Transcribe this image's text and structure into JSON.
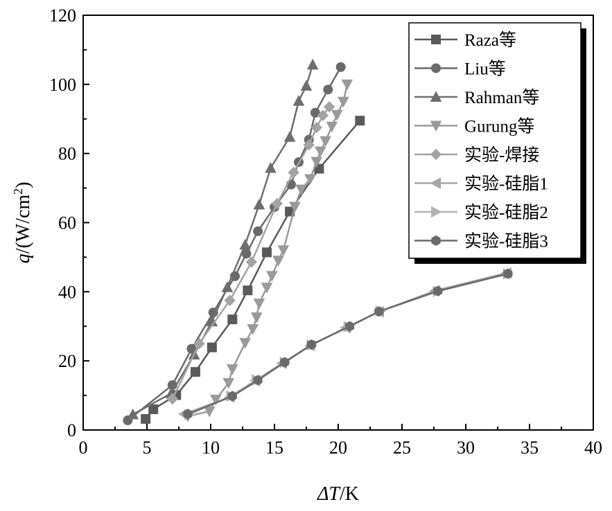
{
  "chart_data": {
    "type": "line",
    "xlabel": {
      "prefix": "ΔT",
      "suffix": "/K"
    },
    "ylabel": {
      "var": "q",
      "unit_pre": "/(W/cm",
      "sup": "2",
      "unit_post": ")"
    },
    "xlim": [
      0,
      40
    ],
    "ylim": [
      0,
      120
    ],
    "xticks": [
      0,
      5,
      10,
      15,
      20,
      25,
      30,
      35,
      40
    ],
    "yticks": [
      0,
      20,
      40,
      60,
      80,
      100,
      120
    ],
    "grid": false,
    "legend_position": "top-right",
    "series": [
      {
        "name": "Raza等",
        "marker": "square",
        "color": "#5a5a5a",
        "x": [
          4.9,
          5.5,
          7.3,
          8.8,
          10.1,
          11.7,
          12.9,
          14.4,
          16.2,
          18.5,
          21.7
        ],
        "y": [
          3.2,
          6,
          10.1,
          16.8,
          23.9,
          32,
          40.4,
          51.4,
          63.2,
          75.6,
          89.5
        ]
      },
      {
        "name": "Liu等",
        "marker": "circle",
        "color": "#6a6a6a",
        "x": [
          3.5,
          7,
          8.5,
          10.2,
          11.9,
          12.8,
          13.7,
          15,
          16.3,
          16.9,
          17.7,
          18.2,
          19.2,
          20.2
        ],
        "y": [
          2.8,
          13,
          23.5,
          34,
          44.5,
          51,
          57.5,
          64.5,
          71,
          77.5,
          84,
          91.8,
          98.5,
          105
        ]
      },
      {
        "name": "Rahman等",
        "marker": "triangle-up",
        "color": "#6e6e6e",
        "x": [
          3.9,
          6.9,
          8.7,
          10.1,
          11.3,
          12.7,
          13.8,
          14.7,
          16.2,
          16.9,
          17.5,
          18
        ],
        "y": [
          4.5,
          10.6,
          21.8,
          31.4,
          41.3,
          53.6,
          65.2,
          75.8,
          84.8,
          95.2,
          99.6,
          105.7
        ]
      },
      {
        "name": "Gurung等",
        "marker": "triangle-down",
        "color": "#9a9a9a",
        "x": [
          8.2,
          9.9,
          10.4,
          11.4,
          11.7,
          12.7,
          13.3,
          13.6,
          13.8,
          14.4,
          14.8,
          15.3,
          15.7,
          16.6,
          17.1,
          17.8,
          18.3,
          18.6,
          19,
          19.5,
          19.9,
          20.4,
          20.7
        ],
        "y": [
          4,
          5.4,
          8.8,
          13.6,
          17.6,
          25.2,
          29.2,
          32.6,
          36.6,
          41.2,
          44.6,
          49,
          52,
          64.6,
          69.6,
          72.6,
          77.6,
          80.6,
          83.6,
          87.8,
          91.2,
          95,
          100
        ]
      },
      {
        "name": "实验-焊接",
        "marker": "diamond",
        "color": "#a3a3a3",
        "x": [
          7,
          9.1,
          11.5,
          13.2,
          15.2,
          16.5,
          17.7,
          18.3,
          18.8,
          19.3
        ],
        "y": [
          9,
          25,
          37.5,
          48.6,
          65.5,
          74.5,
          82.5,
          87.5,
          91,
          93.5
        ]
      },
      {
        "name": "实验-硅脂1",
        "marker": "triangle-left",
        "color": "#a6a6a6",
        "x": [
          7.9,
          11.5,
          13.5,
          15.6,
          17.8,
          20.6,
          23.2,
          27.6,
          33.2
        ],
        "y": [
          4.6,
          9.5,
          14.3,
          19.3,
          24.4,
          29.6,
          34.2,
          40.3,
          45.4
        ]
      },
      {
        "name": "实验-硅脂2",
        "marker": "triangle-right",
        "color": "#b3b3b3",
        "x": [
          8.3,
          11.6,
          13.6,
          15.8,
          17.9,
          20.8,
          23.3,
          27.8,
          33.3
        ],
        "y": [
          4.5,
          9.8,
          14.5,
          19.6,
          24.6,
          29.9,
          34.4,
          40.1,
          45.2
        ]
      },
      {
        "name": "实验-硅脂3",
        "marker": "hexagon",
        "color": "#6a6a6a",
        "x": [
          8.2,
          11.7,
          13.7,
          15.8,
          17.9,
          20.9,
          23.2,
          27.8,
          33.3
        ],
        "y": [
          4.6,
          9.8,
          14.4,
          19.6,
          24.7,
          30,
          34.3,
          40.2,
          45.2
        ]
      }
    ]
  }
}
